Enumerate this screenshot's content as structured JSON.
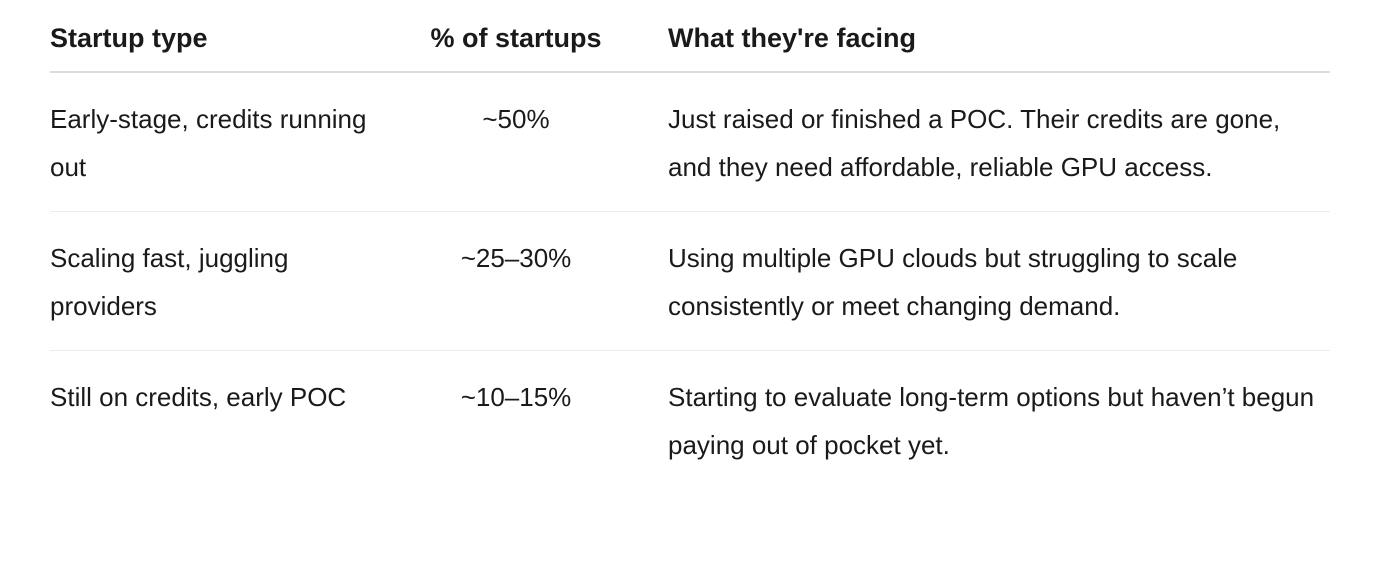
{
  "table": {
    "headers": [
      "Startup type",
      "% of startups",
      "What they're facing"
    ],
    "rows": [
      {
        "type": "Early-stage, credits running out",
        "percent": "~50%",
        "facing": "Just raised or finished a POC. Their credits are gone, and they need affordable, reliable GPU access."
      },
      {
        "type": "Scaling fast, juggling providers",
        "percent": "~25–30%",
        "facing": "Using multiple GPU clouds but struggling to scale consistently or meet changing demand."
      },
      {
        "type": "Still on credits, early POC",
        "percent": "~10–15%",
        "facing": "Starting to evaluate long-term options but haven’t begun paying out of pocket yet."
      }
    ]
  }
}
